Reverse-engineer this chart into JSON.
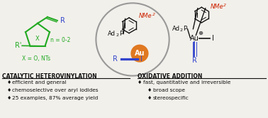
{
  "bg_color": "#f2f0eb",
  "title_left": "CATALYTIC HETEROVINYLATION",
  "title_right": "OXIDATIVE ADDITION",
  "bullets_left": [
    "efficient and general",
    "chemoselective over aryl iodides",
    "25 examples, 87% average yield"
  ],
  "bullets_right": [
    "fast, quantitative and irreversible",
    "broad scope",
    "stereospecific"
  ],
  "green_color": "#22aa22",
  "blue_color": "#3344cc",
  "red_color": "#cc2200",
  "orange_color": "#e07820",
  "black_color": "#111111",
  "gray_color": "#999999"
}
